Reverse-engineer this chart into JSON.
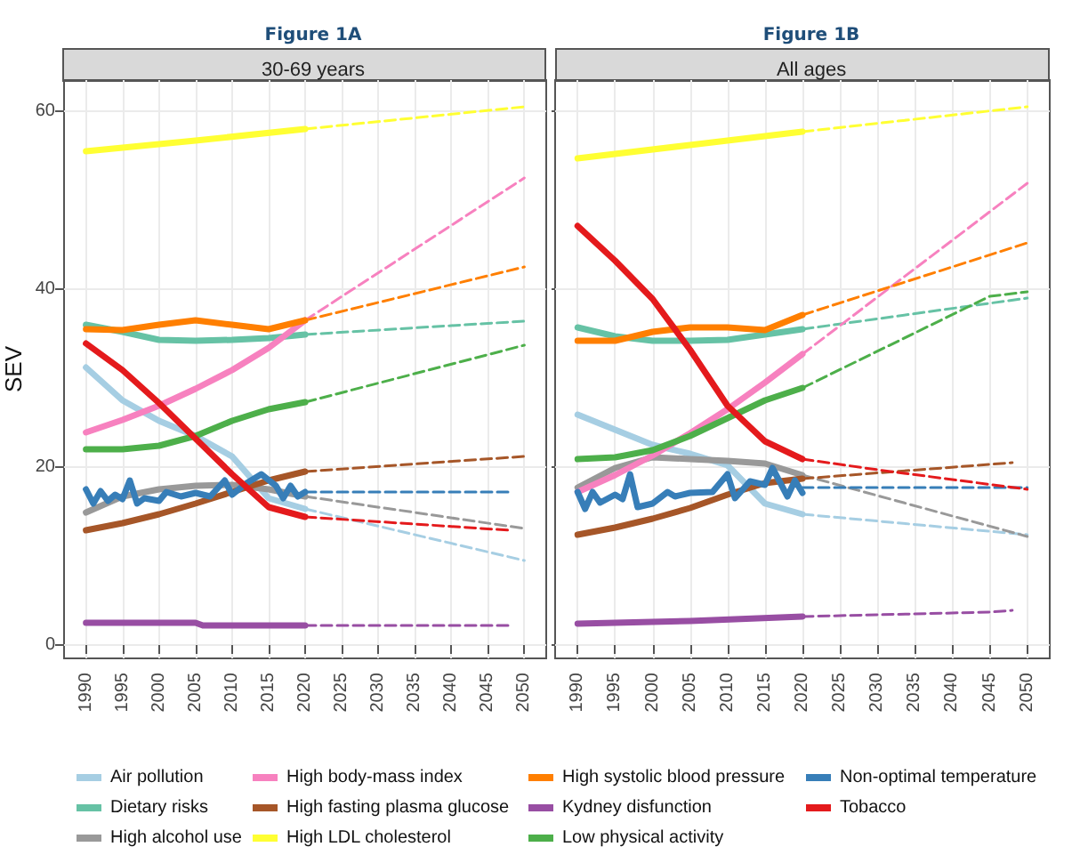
{
  "chart_data": [
    {
      "type": "line",
      "title": "Figure 1A",
      "subtitle": "30-69 years",
      "ylabel": "SEV",
      "xlim": [
        1987,
        2053
      ],
      "ylim": [
        -1.5,
        63.5
      ],
      "xticks": [
        1990,
        1995,
        2000,
        2005,
        2010,
        2015,
        2020,
        2025,
        2030,
        2035,
        2040,
        2045,
        2050
      ],
      "yticks": [
        0,
        20,
        40,
        60
      ],
      "grid": true,
      "legend": "bottom",
      "marker": "none",
      "line_style": "solid",
      "series": [
        {
          "name": "Air pollution",
          "color": "#a6cee3",
          "x": [
            1990,
            1995,
            2000,
            2005,
            2010,
            2015,
            2020
          ],
          "values": [
            31.2,
            27.5,
            25.2,
            23.5,
            21.2,
            16.5,
            15.3
          ]
        },
        {
          "name": "Dietary risks",
          "color": "#66c2a5",
          "x": [
            1990,
            1995,
            2000,
            2005,
            2010,
            2015,
            2020
          ],
          "values": [
            36,
            35.2,
            34.3,
            34.2,
            34.3,
            34.5,
            34.9
          ]
        },
        {
          "name": "High alcohol use",
          "color": "#999999",
          "x": [
            1990,
            1995,
            2000,
            2005,
            2010,
            2015,
            2020
          ],
          "values": [
            14.9,
            16.7,
            17.5,
            17.9,
            18,
            17.5,
            16.7
          ]
        },
        {
          "name": "High body-mass index",
          "color": "#f781bf",
          "x": [
            1990,
            1995,
            2000,
            2005,
            2010,
            2015,
            2020
          ],
          "values": [
            23.9,
            25.3,
            26.9,
            28.8,
            30.9,
            33.4,
            36.5
          ]
        },
        {
          "name": "High fasting plasma glucose",
          "color": "#a65628",
          "x": [
            1990,
            1995,
            2000,
            2005,
            2010,
            2015,
            2020
          ],
          "values": [
            12.9,
            13.7,
            14.7,
            15.9,
            17.2,
            18.5,
            19.5
          ]
        },
        {
          "name": "High LDL cholesterol",
          "color": "#ffff33",
          "x": [
            1990,
            2005,
            2020
          ],
          "values": [
            55.5,
            56.7,
            58
          ]
        },
        {
          "name": "High systolic blood pressure",
          "color": "#ff7f00",
          "x": [
            1990,
            1995,
            2000,
            2005,
            2010,
            2015,
            2020
          ],
          "values": [
            35.5,
            35.4,
            36,
            36.5,
            36,
            35.5,
            36.5
          ]
        },
        {
          "name": "Kydney disfunction",
          "color": "#984ea3",
          "x": [
            1990,
            2005,
            2006,
            2020
          ],
          "values": [
            2.5,
            2.5,
            2.2,
            2.2
          ]
        },
        {
          "name": "Low physical activity",
          "color": "#4daf4a",
          "x": [
            1990,
            1995,
            2000,
            2005,
            2010,
            2015,
            2020
          ],
          "values": [
            22,
            22,
            22.4,
            23.5,
            25.2,
            26.5,
            27.3
          ]
        },
        {
          "name": "Non-optimal temperature",
          "color": "#377eb8",
          "x": [
            1990,
            1991,
            1992,
            1993,
            1994,
            1995,
            1996,
            1997,
            1998,
            2000,
            2001,
            2003,
            2005,
            2007,
            2009,
            2010,
            2012,
            2014,
            2016,
            2017,
            2018,
            2019,
            2020
          ],
          "values": [
            17.5,
            15.9,
            17.3,
            16.2,
            16.9,
            16.4,
            18.5,
            15.9,
            16.5,
            16.2,
            17.2,
            16.7,
            17.1,
            16.7,
            18.5,
            16.9,
            18.2,
            19.2,
            17.9,
            16.5,
            17.9,
            16.7,
            17.2
          ]
        },
        {
          "name": "Tobacco",
          "color": "#e41a1c",
          "x": [
            1990,
            1995,
            2000,
            2005,
            2010,
            2015,
            2020
          ],
          "values": [
            33.9,
            30.9,
            27.2,
            23.2,
            19.2,
            15.5,
            14.4
          ]
        },
        {
          "color": "#a6cee3",
          "line_style": "dashed",
          "x": [
            2020,
            2050
          ],
          "values": [
            15.3,
            9.5
          ]
        },
        {
          "color": "#66c2a5",
          "line_style": "dashed",
          "x": [
            2020,
            2050
          ],
          "values": [
            34.9,
            36.4
          ]
        },
        {
          "color": "#999999",
          "line_style": "dashed",
          "x": [
            2020,
            2050
          ],
          "values": [
            16.7,
            13.1
          ]
        },
        {
          "color": "#f781bf",
          "line_style": "dashed",
          "x": [
            2020,
            2050
          ],
          "values": [
            36.5,
            52.5
          ]
        },
        {
          "color": "#a65628",
          "line_style": "dashed",
          "x": [
            2020,
            2050
          ],
          "values": [
            19.5,
            21.2
          ]
        },
        {
          "color": "#ffff33",
          "line_style": "dashed",
          "x": [
            2020,
            2050
          ],
          "values": [
            58,
            60.5
          ]
        },
        {
          "color": "#ff7f00",
          "line_style": "dashed",
          "x": [
            2020,
            2050
          ],
          "values": [
            36.5,
            42.5
          ]
        },
        {
          "color": "#984ea3",
          "line_style": "dashed",
          "x": [
            2020,
            2048
          ],
          "values": [
            2.2,
            2.2
          ]
        },
        {
          "color": "#4daf4a",
          "line_style": "dashed",
          "x": [
            2020,
            2050
          ],
          "values": [
            27.3,
            33.7
          ]
        },
        {
          "color": "#377eb8",
          "line_style": "dashed",
          "x": [
            2020,
            2048
          ],
          "values": [
            17.2,
            17.2
          ]
        },
        {
          "color": "#e41a1c",
          "line_style": "dashed",
          "x": [
            2020,
            2048
          ],
          "values": [
            14.4,
            12.9
          ]
        }
      ]
    },
    {
      "type": "line",
      "title": "Figure 1B",
      "subtitle": "All ages",
      "xlim": [
        1987,
        2053
      ],
      "ylim": [
        -1.5,
        63.5
      ],
      "xticks": [
        1990,
        1995,
        2000,
        2005,
        2010,
        2015,
        2020,
        2025,
        2030,
        2035,
        2040,
        2045,
        2050
      ],
      "yticks": [
        0,
        20,
        40,
        60
      ],
      "tick_labels": "x",
      "grid": true,
      "marker": "none",
      "line_style": "solid",
      "series": [
        {
          "color": "#a6cee3",
          "x": [
            1990,
            1995,
            2000,
            2005,
            2010,
            2015,
            2020
          ],
          "values": [
            25.9,
            24.2,
            22.5,
            21.5,
            20.2,
            15.9,
            14.7
          ]
        },
        {
          "color": "#66c2a5",
          "x": [
            1990,
            1995,
            2000,
            2005,
            2010,
            2015,
            2020
          ],
          "values": [
            35.7,
            34.7,
            34.2,
            34.2,
            34.3,
            34.9,
            35.5
          ]
        },
        {
          "color": "#999999",
          "x": [
            1990,
            1995,
            2000,
            2005,
            2010,
            2015,
            2020
          ],
          "values": [
            17.7,
            19.9,
            21.1,
            20.9,
            20.7,
            20.4,
            19.1
          ]
        },
        {
          "color": "#f781bf",
          "x": [
            1990,
            1995,
            2000,
            2005,
            2010,
            2015,
            2020
          ],
          "values": [
            17.2,
            19.1,
            21.3,
            23.8,
            26.5,
            29.5,
            32.7
          ]
        },
        {
          "color": "#a65628",
          "x": [
            1990,
            1995,
            2000,
            2005,
            2010,
            2015,
            2020
          ],
          "values": [
            12.4,
            13.2,
            14.2,
            15.4,
            16.9,
            18.2,
            18.7
          ]
        },
        {
          "color": "#ffff33",
          "x": [
            1990,
            2005,
            2020
          ],
          "values": [
            54.7,
            56.2,
            57.7
          ]
        },
        {
          "color": "#ff7f00",
          "x": [
            1990,
            1995,
            2000,
            2005,
            2010,
            2015,
            2020
          ],
          "values": [
            34.2,
            34.2,
            35.2,
            35.7,
            35.7,
            35.4,
            37.1
          ]
        },
        {
          "color": "#984ea3",
          "x": [
            1990,
            2005,
            2020
          ],
          "values": [
            2.4,
            2.7,
            3.2
          ]
        },
        {
          "color": "#4daf4a",
          "x": [
            1990,
            1995,
            2000,
            2005,
            2010,
            2015,
            2020
          ],
          "values": [
            20.9,
            21.1,
            21.9,
            23.5,
            25.5,
            27.5,
            28.9
          ]
        },
        {
          "color": "#377eb8",
          "x": [
            1990,
            1991,
            1992,
            1993,
            1995,
            1996,
            1997,
            1998,
            2000,
            2002,
            2003,
            2005,
            2008,
            2010,
            2011,
            2013,
            2015,
            2016,
            2018,
            2019,
            2020
          ],
          "values": [
            17.2,
            15.3,
            17.2,
            16,
            16.9,
            16.4,
            19.2,
            15.5,
            15.9,
            17.2,
            16.7,
            17.1,
            17.2,
            19.2,
            16.5,
            18.4,
            18,
            19.9,
            16.7,
            18.5,
            17.1
          ]
        },
        {
          "color": "#e41a1c",
          "x": [
            1990,
            1995,
            2000,
            2005,
            2010,
            2015,
            2020
          ],
          "values": [
            47.1,
            43.2,
            38.9,
            33.2,
            26.9,
            22.9,
            20.9
          ]
        },
        {
          "color": "#a6cee3",
          "line_style": "dashed",
          "x": [
            2020,
            2050
          ],
          "values": [
            14.7,
            12.4
          ]
        },
        {
          "color": "#66c2a5",
          "line_style": "dashed",
          "x": [
            2020,
            2050
          ],
          "values": [
            35.5,
            39
          ]
        },
        {
          "color": "#999999",
          "line_style": "dashed",
          "x": [
            2020,
            2050
          ],
          "values": [
            19.1,
            12.2
          ]
        },
        {
          "color": "#f781bf",
          "line_style": "dashed",
          "x": [
            2020,
            2050
          ],
          "values": [
            32.7,
            51.9
          ]
        },
        {
          "color": "#a65628",
          "line_style": "dashed",
          "x": [
            2020,
            2048
          ],
          "values": [
            18.7,
            20.5
          ]
        },
        {
          "color": "#ffff33",
          "line_style": "dashed",
          "x": [
            2020,
            2050
          ],
          "values": [
            57.7,
            60.5
          ]
        },
        {
          "color": "#ff7f00",
          "line_style": "dashed",
          "x": [
            2020,
            2050
          ],
          "values": [
            37.1,
            45.2
          ]
        },
        {
          "color": "#984ea3",
          "line_style": "dashed",
          "x": [
            2020,
            2045,
            2048
          ],
          "values": [
            3.2,
            3.7,
            3.9
          ]
        },
        {
          "color": "#4daf4a",
          "line_style": "dashed",
          "x": [
            2020,
            2045,
            2050
          ],
          "values": [
            28.9,
            39.2,
            39.7
          ]
        },
        {
          "color": "#377eb8",
          "line_style": "dashed",
          "x": [
            2020,
            2050
          ],
          "values": [
            17.7,
            17.7
          ]
        },
        {
          "color": "#e41a1c",
          "line_style": "dashed",
          "x": [
            2020,
            2030,
            2050
          ],
          "values": [
            20.9,
            19.7,
            17.5
          ]
        }
      ]
    }
  ]
}
